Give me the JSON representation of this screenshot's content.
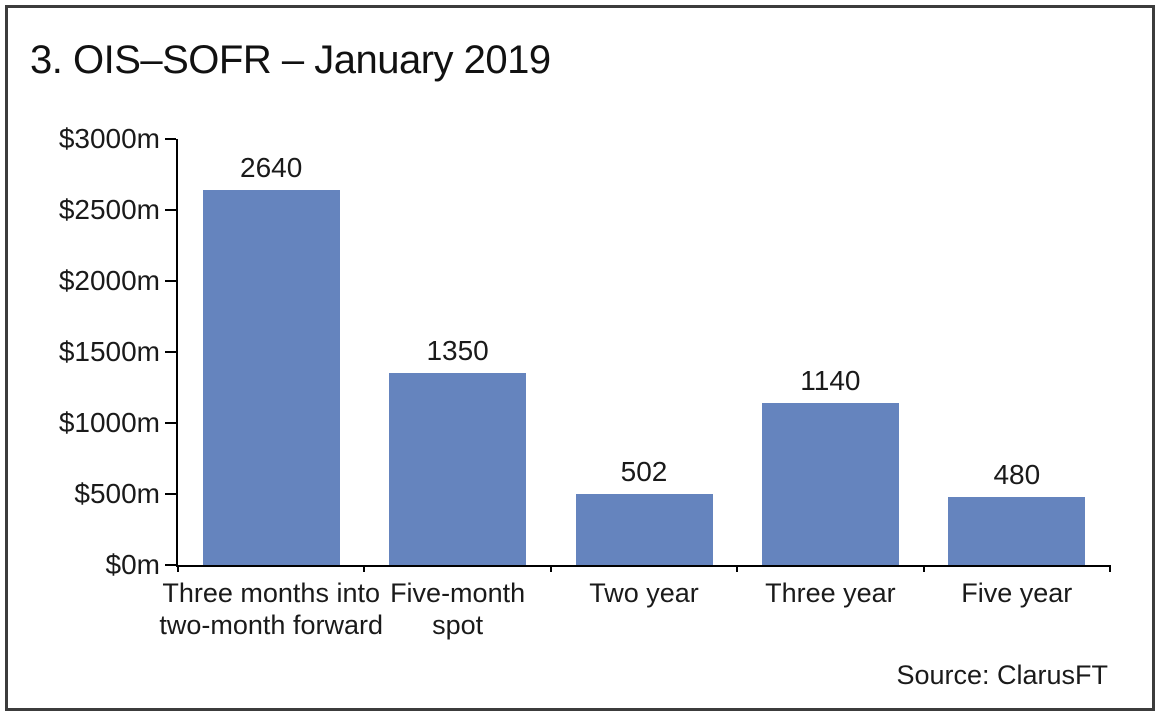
{
  "title": "3. OIS–SOFR – January 2019",
  "source": "Source: ClarusFT",
  "colors": {
    "bar": "#6584BE",
    "axis": "#000000",
    "frame": "#3c3c3c",
    "text": "#1a1a1a"
  },
  "chart_data": {
    "type": "bar",
    "title": "3. OIS–SOFR – January 2019",
    "categories": [
      "Three months into two-month forward",
      "Five-month spot",
      "Two year",
      "Three year",
      "Five year"
    ],
    "categories_wrapped": [
      "Three months into\ntwo-month forward",
      "Five-month\nspot",
      "Two year",
      "Three year",
      "Five year"
    ],
    "values": [
      2640,
      1350,
      502,
      1140,
      480
    ],
    "bar_labels": [
      "2640",
      "1350",
      "502",
      "1140",
      "480"
    ],
    "xlabel": "",
    "ylabel": "",
    "ylim": [
      0,
      3000
    ],
    "y_ticks": [
      {
        "value": 3000,
        "label": "$3000m"
      },
      {
        "value": 2500,
        "label": "$2500m"
      },
      {
        "value": 2000,
        "label": "$2000m"
      },
      {
        "value": 1500,
        "label": "$1500m"
      },
      {
        "value": 1000,
        "label": "$1000m"
      },
      {
        "value": 500,
        "label": "$500m"
      },
      {
        "value": 0,
        "label": "$0m"
      }
    ],
    "grid": false,
    "legend": false,
    "bar_color": "#6584BE",
    "source": "Source: ClarusFT"
  }
}
